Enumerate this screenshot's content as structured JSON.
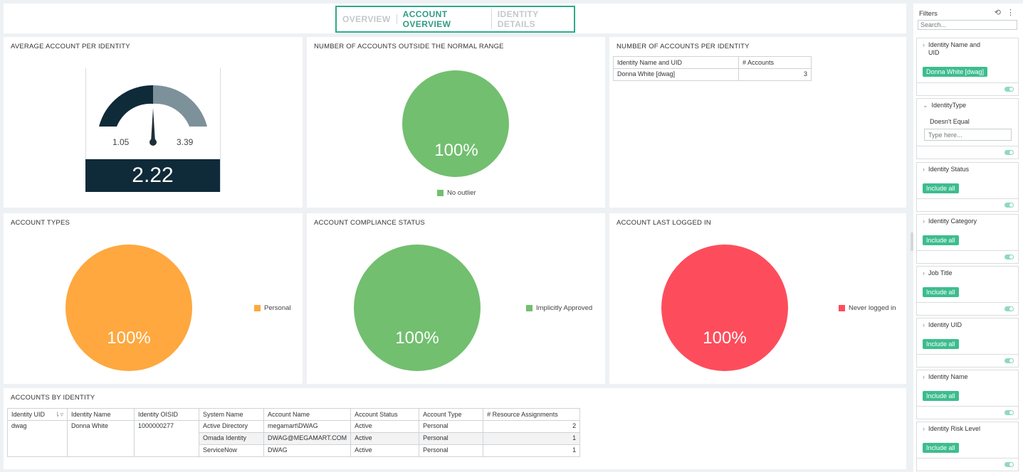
{
  "tabs": [
    "OVERVIEW",
    "ACCOUNT OVERVIEW",
    "IDENTITY DETAILS"
  ],
  "active_tab": "ACCOUNT OVERVIEW",
  "panels": {
    "avg_account": {
      "title": "AVERAGE ACCOUNT PER IDENTITY",
      "min": "1.05",
      "max": "3.39",
      "value": "2.22",
      "colors": {
        "filled": "#0f2a38",
        "rest": "#7d919b"
      }
    },
    "outside_range": {
      "title": "NUMBER OF ACCOUNTS OUTSIDE THE NORMAL RANGE",
      "pie_label": "100%",
      "legend": "No outlier",
      "color": "#72bf6f"
    },
    "per_identity": {
      "title": "NUMBER OF ACCOUNTS PER IDENTITY",
      "columns": [
        "Identity Name and UID",
        "# Accounts"
      ],
      "rows": [
        [
          "Donna White [dwag]",
          "3"
        ]
      ]
    },
    "account_types": {
      "title": "ACCOUNT TYPES",
      "pie_label": "100%",
      "legend": "Personal",
      "color": "#fea83f"
    },
    "compliance": {
      "title": "ACCOUNT COMPLIANCE STATUS",
      "pie_label": "100%",
      "legend": "Implicitly Approved",
      "color": "#72bf6f"
    },
    "last_logged": {
      "title": "ACCOUNT LAST LOGGED IN",
      "pie_label": "100%",
      "legend": "Never logged in",
      "color": "#fd4d5c"
    },
    "by_identity": {
      "title": "ACCOUNTS BY IDENTITY",
      "columns": [
        "Identity UID",
        "Identity Name",
        "Identity OISID",
        "System Name",
        "Account Name",
        "Account Status",
        "Account Type",
        "# Resource Assignments"
      ],
      "identity": {
        "uid": "dwag",
        "name": "Donna White",
        "oisid": "1000000277"
      },
      "rows": [
        [
          "Active Directory",
          "megamart\\DWAG",
          "Active",
          "Personal",
          "2"
        ],
        [
          "Omada Identity",
          "DWAG@MEGAMART.COM",
          "Active",
          "Personal",
          "1"
        ],
        [
          "ServiceNow",
          "DWAG",
          "Active",
          "Personal",
          "1"
        ]
      ]
    }
  },
  "sidebar": {
    "title": "Filters",
    "search_placeholder": "Search...",
    "filters": [
      {
        "label": "Identity Name and UID",
        "chip": "Donna White [dwag]"
      },
      {
        "label": "IdentityType",
        "operator": "Doesn't Equal",
        "placeholder": "Type here..."
      },
      {
        "label": "Identity Status",
        "chip": "Include all"
      },
      {
        "label": "Identity Category",
        "chip": "Include all"
      },
      {
        "label": "Job Title",
        "chip": "Include all"
      },
      {
        "label": "Identity UID",
        "chip": "Include all"
      },
      {
        "label": "Identity Name",
        "chip": "Include all"
      },
      {
        "label": "Identity Risk Level",
        "chip": "Include all"
      }
    ]
  }
}
